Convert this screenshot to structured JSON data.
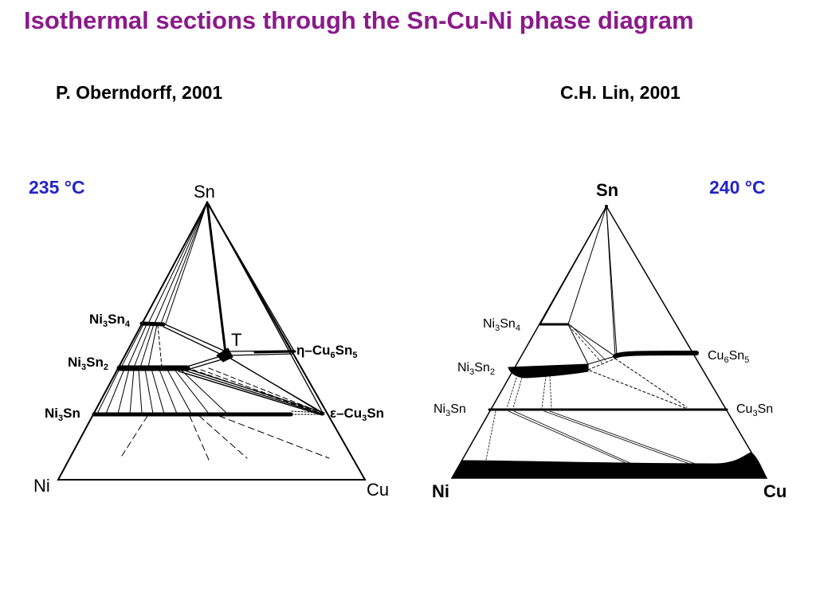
{
  "title": "Isothermal sections through the Sn-Cu-Ni phase diagram",
  "left": {
    "author": "P. Oberndorff, 2001",
    "temperature": "235 °C",
    "corners": {
      "top": "Sn",
      "bottom_left": "Ni",
      "bottom_right": "Cu"
    },
    "phase_labels": {
      "ni3sn4": {
        "a": "Ni",
        "b": "3",
        "c": "Sn",
        "d": "4"
      },
      "ni3sn2": {
        "a": "Ni",
        "b": "3",
        "c": "Sn",
        "d": "2"
      },
      "ni3sn": {
        "a": "Ni",
        "b": "3",
        "c": "Sn"
      },
      "ternary": "T",
      "cu6sn5": {
        "a": "η–Cu",
        "b": "6",
        "c": "Sn",
        "d": "5"
      },
      "cu3sn": {
        "a": "ε–Cu",
        "b": "3",
        "c": "Sn"
      }
    }
  },
  "right": {
    "author": "C.H. Lin, 2001",
    "temperature": "240 °C",
    "corners": {
      "top": "Sn",
      "bottom_left": "Ni",
      "bottom_right": "Cu"
    },
    "phase_labels": {
      "ni3sn4": {
        "a": "Ni",
        "b": "3",
        "c": "Sn",
        "d": "4"
      },
      "ni3sn2": {
        "a": "Ni",
        "b": "3",
        "c": "Sn",
        "d": "2"
      },
      "ni3sn": {
        "a": "Ni",
        "b": "3",
        "c": "Sn"
      },
      "cu6sn5": {
        "a": "Cu",
        "b": "6",
        "c": "Sn",
        "d": "5"
      },
      "cu3sn": {
        "a": "Cu",
        "b": "3",
        "c": "Sn"
      }
    }
  },
  "colors": {
    "title": "#8b1a8b",
    "temperature": "#2323c8",
    "lines": "#000000"
  }
}
